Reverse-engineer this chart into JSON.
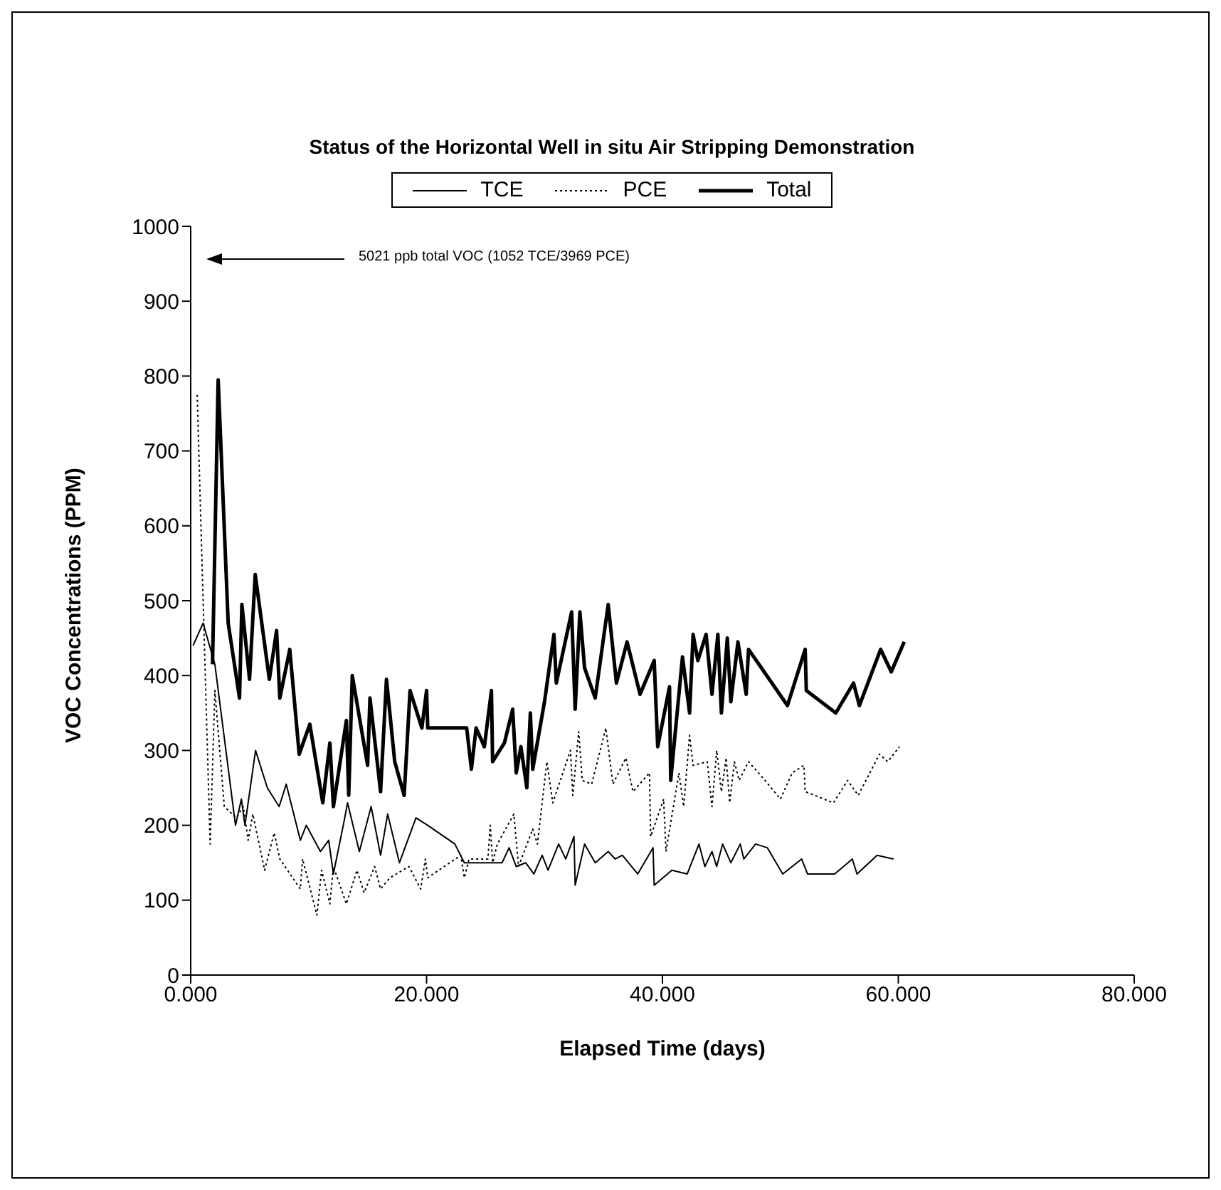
{
  "chart_data": {
    "type": "line",
    "title": "Status of the Horizontal Well in situ Air Stripping Demonstration",
    "xlabel": "Elapsed Time (days)",
    "ylabel": "VOC Concentrations (PPM)",
    "annotations": [
      "5021 ppb total VOC (1052 TCE/3969 PCE)"
    ],
    "xlim": [
      0,
      80
    ],
    "ylim": [
      0,
      1000
    ],
    "xticks": [
      {
        "value": 0,
        "label": "0.000"
      },
      {
        "value": 20,
        "label": "20.000"
      },
      {
        "value": 40,
        "label": "40.000"
      },
      {
        "value": 60,
        "label": "60.000"
      },
      {
        "value": 80,
        "label": "80.000"
      }
    ],
    "yticks": [
      0,
      100,
      200,
      300,
      400,
      500,
      600,
      700,
      800,
      900,
      1000
    ],
    "legend": "top",
    "marker": "none",
    "series": [
      {
        "name": "TCE",
        "color": "#000000",
        "line_style": "solid",
        "x": [
          0.2,
          1.05,
          2.05,
          3.8,
          4.3,
          4.6,
          5.5,
          6.5,
          7.5,
          8.1,
          9.3,
          9.8,
          11.0,
          11.7,
          12.1,
          13.0,
          13.3,
          14.3,
          15.3,
          16.1,
          16.7,
          17.7,
          19.1,
          20.1,
          22.4,
          23.2,
          26.4,
          27.0,
          27.6,
          28.4,
          29.1,
          29.8,
          30.3,
          31.2,
          31.8,
          32.5,
          32.6,
          33.4,
          34.3,
          35.4,
          36.0,
          36.6,
          37.9,
          39.2,
          39.3,
          40.8,
          42.1,
          43.1,
          43.6,
          44.2,
          44.6,
          45.1,
          45.8,
          46.6,
          46.9,
          47.9,
          48.9,
          50.2,
          51.8,
          52.3,
          54.6,
          56.1,
          56.5,
          58.2,
          59.6
        ],
        "values": [
          440,
          470,
          415,
          200,
          235,
          200,
          300,
          250,
          225,
          255,
          180,
          200,
          165,
          180,
          135,
          205,
          230,
          165,
          225,
          160,
          215,
          150,
          210,
          200,
          175,
          150,
          150,
          170,
          145,
          150,
          135,
          160,
          140,
          175,
          155,
          185,
          120,
          175,
          150,
          165,
          155,
          160,
          135,
          170,
          120,
          140,
          135,
          175,
          145,
          165,
          145,
          175,
          150,
          175,
          155,
          175,
          170,
          135,
          155,
          135,
          135,
          155,
          135,
          160,
          155
        ]
      },
      {
        "name": "PCE",
        "color": "#000000",
        "line_style": "dotted",
        "x": [
          0.55,
          1.65,
          2.05,
          2.85,
          3.86,
          4.46,
          4.87,
          5.27,
          6.27,
          7.08,
          7.56,
          9.29,
          9.49,
          10.7,
          11.1,
          11.8,
          12.1,
          13.2,
          14.1,
          14.7,
          15.6,
          16.1,
          16.9,
          18.5,
          19.5,
          19.9,
          20.1,
          22.9,
          23.2,
          23.6,
          25.2,
          25.4,
          25.6,
          26.0,
          27.4,
          27.8,
          29.0,
          29.4,
          30.2,
          30.7,
          32.2,
          32.4,
          32.9,
          33.2,
          34.0,
          35.2,
          35.8,
          36.9,
          37.5,
          38.9,
          39.0,
          40.1,
          40.3,
          41.4,
          41.8,
          42.3,
          42.6,
          43.8,
          44.2,
          44.6,
          45.0,
          45.4,
          45.7,
          46.1,
          46.5,
          47.3,
          48.7,
          50.0,
          51.0,
          52.0,
          52.1,
          54.5,
          55.7,
          56.6,
          58.4,
          59.1,
          60.1
        ],
        "values": [
          775,
          175,
          380,
          225,
          210,
          225,
          180,
          215,
          140,
          190,
          155,
          115,
          155,
          80,
          140,
          95,
          145,
          95,
          140,
          110,
          145,
          115,
          130,
          145,
          115,
          155,
          130,
          160,
          130,
          155,
          155,
          200,
          150,
          175,
          215,
          145,
          195,
          175,
          285,
          230,
          300,
          240,
          325,
          260,
          255,
          330,
          255,
          290,
          245,
          270,
          185,
          235,
          165,
          270,
          225,
          320,
          280,
          285,
          225,
          300,
          245,
          290,
          230,
          285,
          260,
          285,
          260,
          235,
          270,
          280,
          245,
          230,
          260,
          240,
          295,
          285,
          305
        ]
      },
      {
        "name": "Total",
        "color": "#000000",
        "line_style": "solid",
        "x": [
          1.85,
          2.33,
          3.18,
          4.14,
          4.34,
          4.99,
          5.47,
          6.67,
          7.28,
          7.56,
          8.4,
          9.2,
          10.1,
          11.2,
          11.8,
          12.1,
          13.2,
          13.4,
          13.7,
          15.0,
          15.2,
          16.1,
          16.6,
          17.3,
          18.1,
          18.6,
          19.6,
          20.0,
          20.1,
          23.4,
          23.8,
          24.2,
          24.9,
          25.5,
          25.6,
          26.6,
          27.3,
          27.6,
          28.0,
          28.5,
          28.8,
          29.0,
          30.0,
          30.8,
          31.0,
          32.3,
          32.6,
          33.0,
          33.4,
          34.3,
          35.4,
          36.1,
          37.0,
          38.1,
          39.3,
          39.6,
          40.6,
          40.7,
          41.7,
          42.3,
          42.6,
          43.0,
          43.7,
          44.2,
          44.7,
          45.0,
          45.5,
          45.8,
          46.4,
          47.1,
          47.3,
          50.6,
          52.1,
          52.2,
          54.7,
          56.2,
          56.7,
          58.5,
          59.4,
          60.5
        ],
        "values": [
          415,
          795,
          470,
          370,
          495,
          395,
          535,
          395,
          460,
          370,
          435,
          295,
          335,
          230,
          310,
          225,
          340,
          240,
          400,
          280,
          370,
          245,
          395,
          285,
          240,
          380,
          330,
          380,
          330,
          330,
          275,
          330,
          305,
          380,
          285,
          310,
          355,
          270,
          305,
          250,
          350,
          275,
          365,
          455,
          390,
          485,
          355,
          485,
          410,
          370,
          495,
          390,
          445,
          375,
          420,
          305,
          385,
          260,
          425,
          350,
          455,
          420,
          455,
          375,
          455,
          350,
          450,
          365,
          445,
          375,
          435,
          360,
          435,
          380,
          350,
          390,
          360,
          435,
          405,
          445
        ]
      }
    ]
  }
}
